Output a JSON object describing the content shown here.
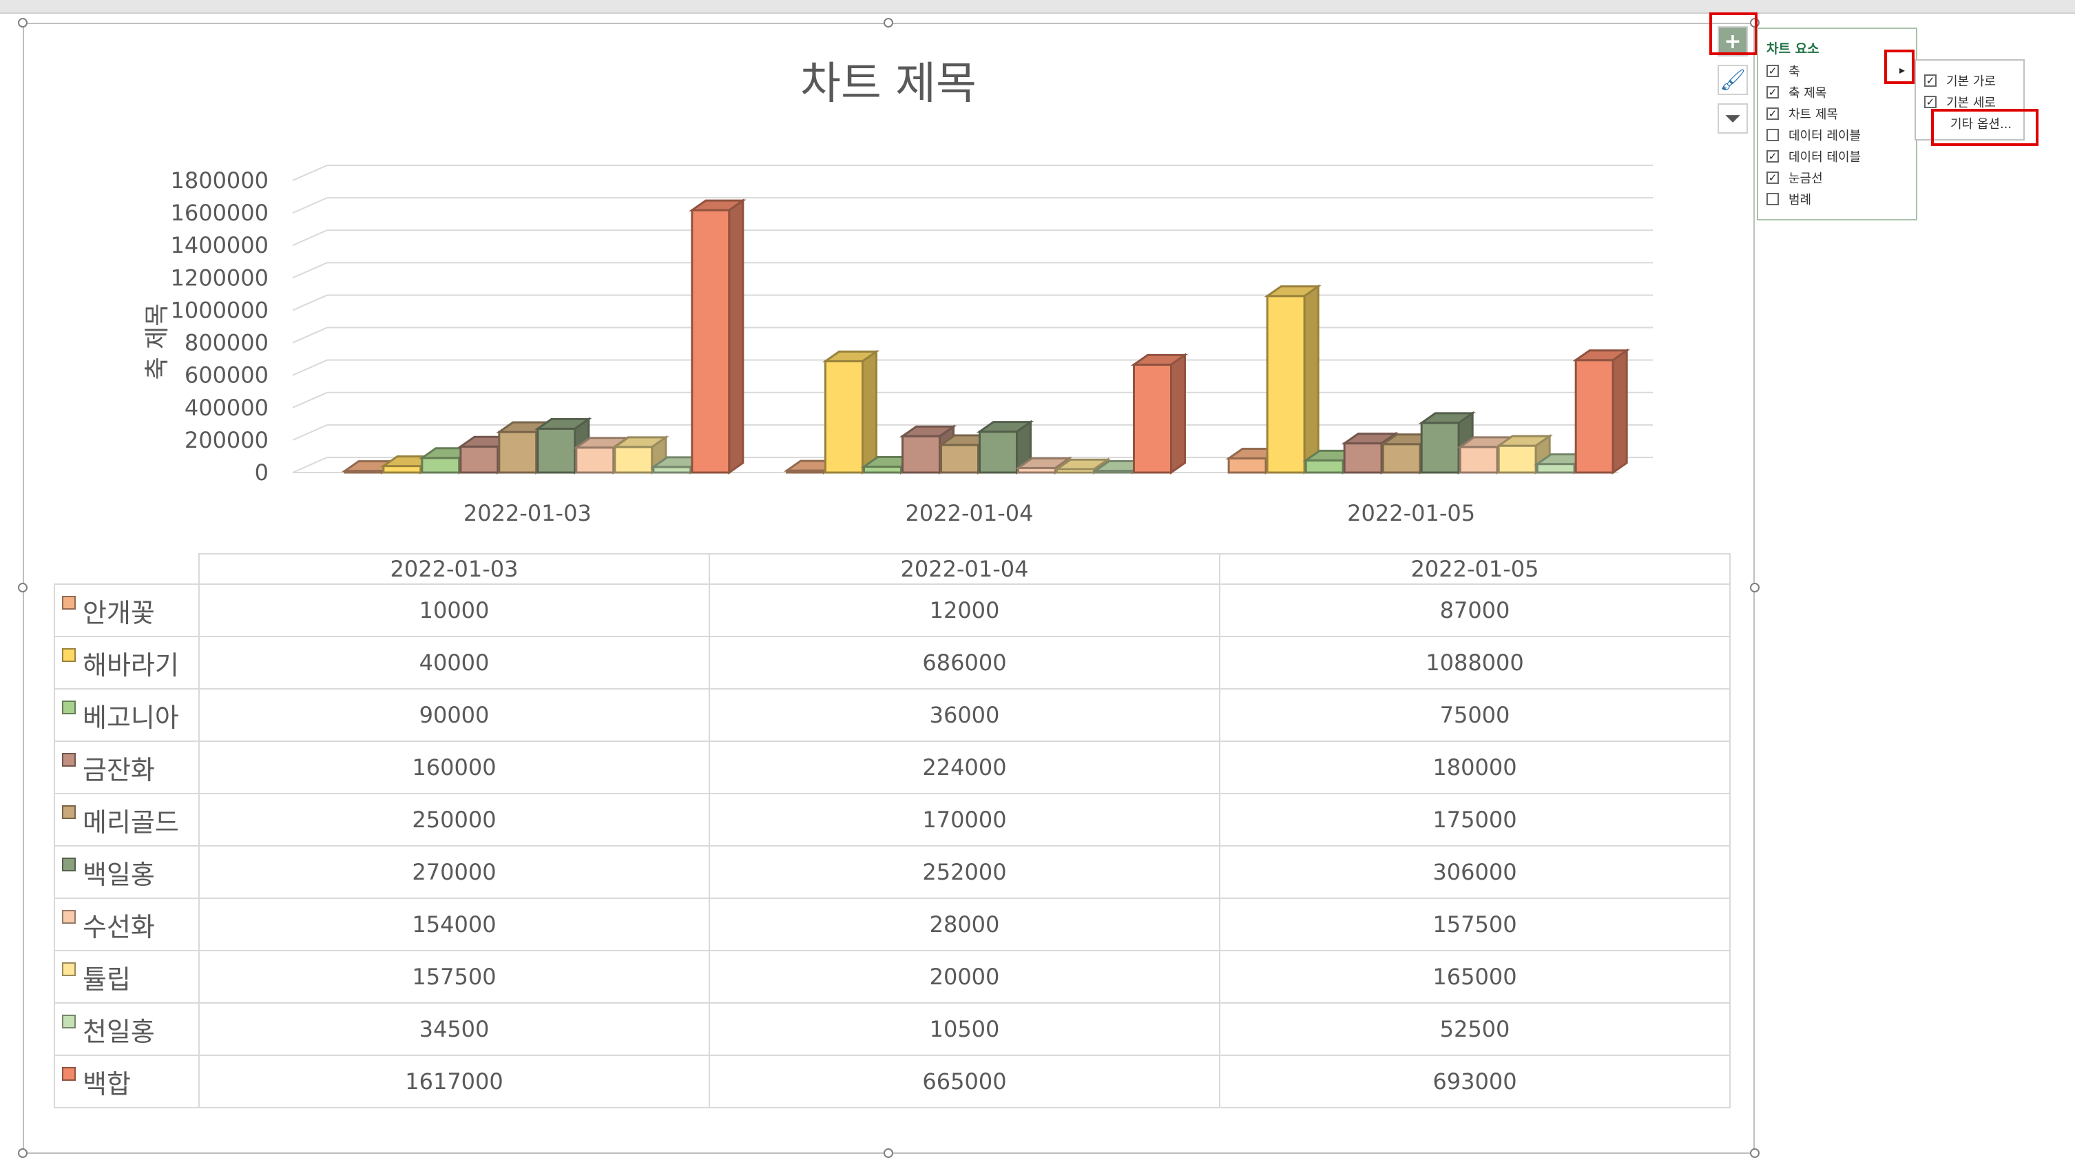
{
  "chart_data": {
    "type": "bar",
    "title": "차트 제목",
    "ylabel": "축 제목",
    "xlabel": "",
    "ylim": [
      0,
      1800000
    ],
    "yticks": [
      "1800000",
      "1600000",
      "1400000",
      "1200000",
      "1000000",
      "800000",
      "600000",
      "400000",
      "200000",
      "0"
    ],
    "categories": [
      "2022-01-03",
      "2022-01-04",
      "2022-01-05"
    ],
    "grid": true,
    "legend": "none",
    "data_table": true,
    "series": [
      {
        "name": "안개꽃",
        "color": "#f4b183",
        "values": [
          10000,
          12000,
          87000
        ]
      },
      {
        "name": "해바라기",
        "color": "#ffd966",
        "values": [
          40000,
          686000,
          1088000
        ]
      },
      {
        "name": "베고니아",
        "color": "#a9d18e",
        "values": [
          90000,
          36000,
          75000
        ]
      },
      {
        "name": "금잔화",
        "color": "#c09080",
        "values": [
          160000,
          224000,
          180000
        ]
      },
      {
        "name": "메리골드",
        "color": "#c8a97a",
        "values": [
          250000,
          170000,
          175000
        ]
      },
      {
        "name": "백일홍",
        "color": "#8a9f7c",
        "values": [
          270000,
          252000,
          306000
        ]
      },
      {
        "name": "수선화",
        "color": "#f8cbad",
        "values": [
          154000,
          28000,
          157500
        ]
      },
      {
        "name": "튤립",
        "color": "#ffe699",
        "values": [
          157500,
          20000,
          165000
        ]
      },
      {
        "name": "천일홍",
        "color": "#c5e0b4",
        "values": [
          34500,
          10500,
          52500
        ]
      },
      {
        "name": "백합",
        "color": "#f08a6b",
        "values": [
          1617000,
          665000,
          693000
        ]
      }
    ]
  },
  "side_buttons": {
    "plus": "+",
    "brush": "🖌",
    "filter": "⏷"
  },
  "chart_elements_panel": {
    "title": "차트 요소",
    "items": [
      {
        "label": "축",
        "checked": true
      },
      {
        "label": "축 제목",
        "checked": true
      },
      {
        "label": "차트 제목",
        "checked": true
      },
      {
        "label": "데이터 레이블",
        "checked": false
      },
      {
        "label": "데이터 테이블",
        "checked": true
      },
      {
        "label": "눈금선",
        "checked": true
      },
      {
        "label": "범례",
        "checked": false
      }
    ]
  },
  "axis_submenu": {
    "items": [
      {
        "label": "기본 가로",
        "checked": true
      },
      {
        "label": "기본 세로",
        "checked": true
      }
    ],
    "more": "기타 옵션..."
  }
}
